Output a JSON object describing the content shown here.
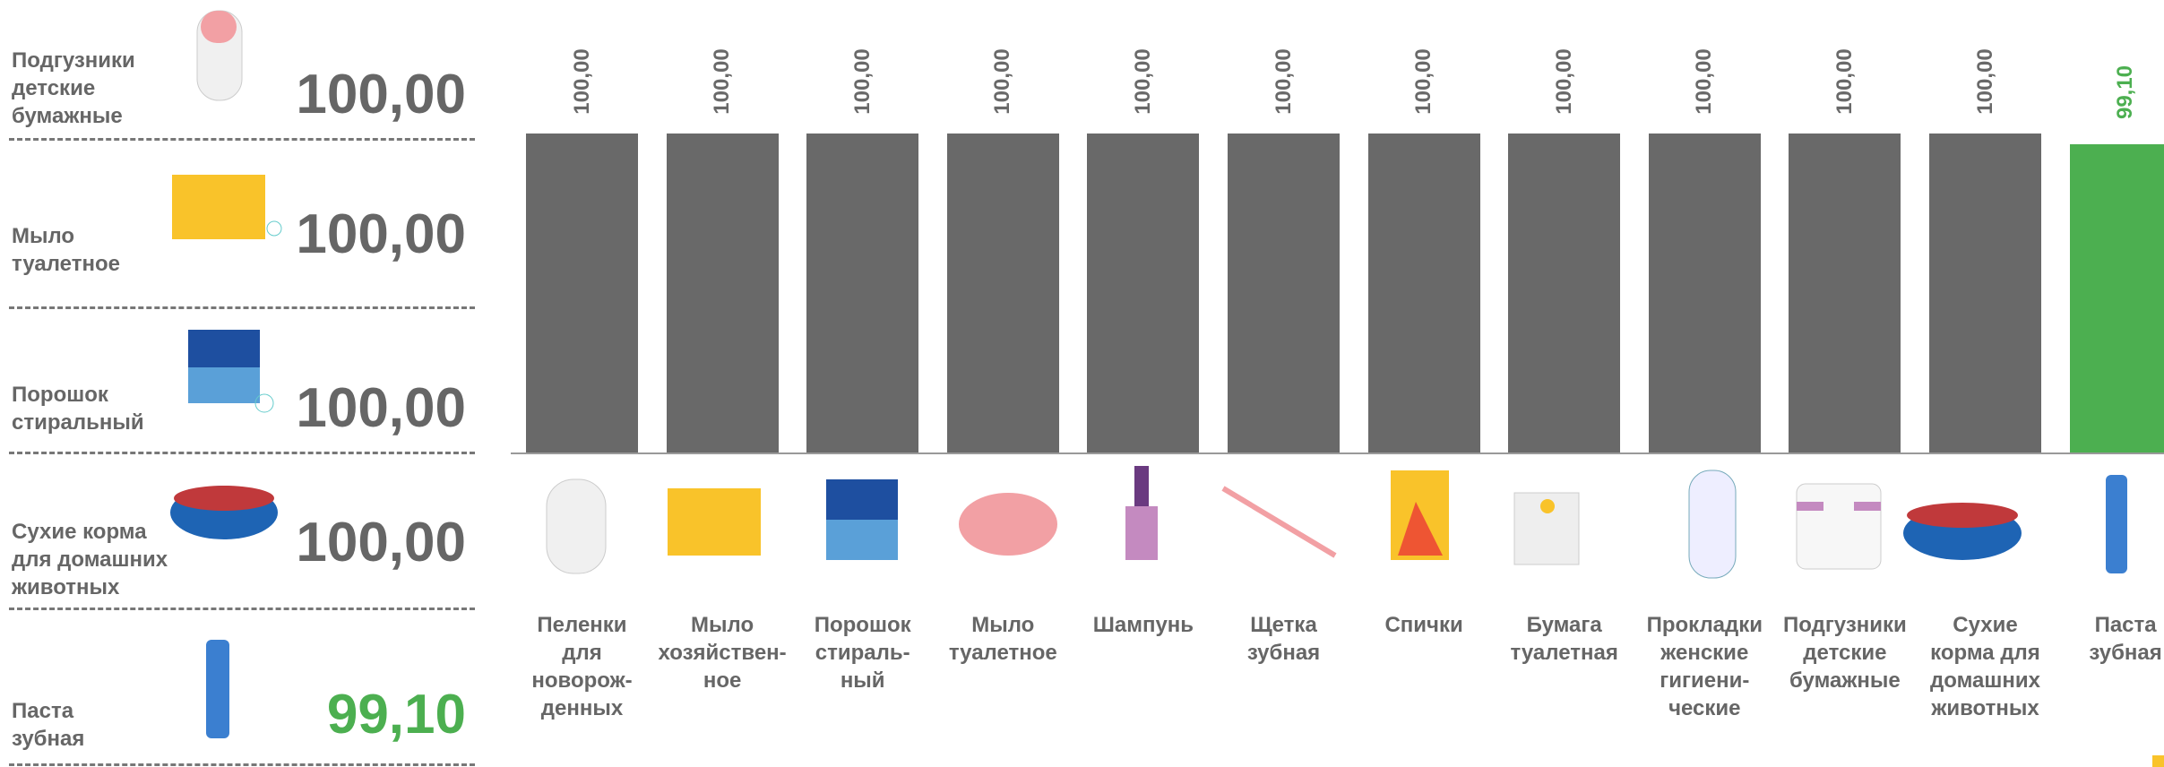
{
  "left_panel": {
    "items": [
      {
        "name": "Подгузники\nдетские\nбумажные",
        "value": "100,00",
        "color": "#666666"
      },
      {
        "name": "Мыло\nтуалетное",
        "value": "100,00",
        "color": "#666666"
      },
      {
        "name": "Порошок\nстиральный",
        "value": "100,00",
        "color": "#666666"
      },
      {
        "name": "Сухие корма\nдля домашних\nживотных",
        "value": "100,00",
        "color": "#666666"
      },
      {
        "name": "Паста\nзубная",
        "value": "99,10",
        "color": "#4caf50"
      }
    ]
  },
  "chart_data": {
    "type": "bar",
    "categories": [
      "Пеленки\nдля\nноворож-\nденных",
      "Мыло\nхозяйствен-\nное",
      "Порошок\nстираль-\nный",
      "Мыло\nтуалетное",
      "Шампунь",
      "Щетка\nзубная",
      "Спички",
      "Бумага\nтуалетная",
      "Прокладки\nженские\nгигиени-\nческие",
      "Подгузники\nдетские\nбумажные",
      "Сухие\nкорма для\nдомашних\nживотных",
      "Паста\nзубная"
    ],
    "values": [
      100,
      100,
      100,
      100,
      100,
      100,
      100,
      100,
      100,
      100,
      100,
      99.1
    ],
    "value_labels": [
      "100,00",
      "100,00",
      "100,00",
      "100,00",
      "100,00",
      "100,00",
      "100,00",
      "100,00",
      "100,00",
      "100,00",
      "100,00",
      "99,10"
    ],
    "colors": [
      "#696969",
      "#696969",
      "#696969",
      "#696969",
      "#696969",
      "#696969",
      "#696969",
      "#696969",
      "#696969",
      "#696969",
      "#696969",
      "#4caf50"
    ],
    "ylim": [
      74,
      100
    ]
  }
}
